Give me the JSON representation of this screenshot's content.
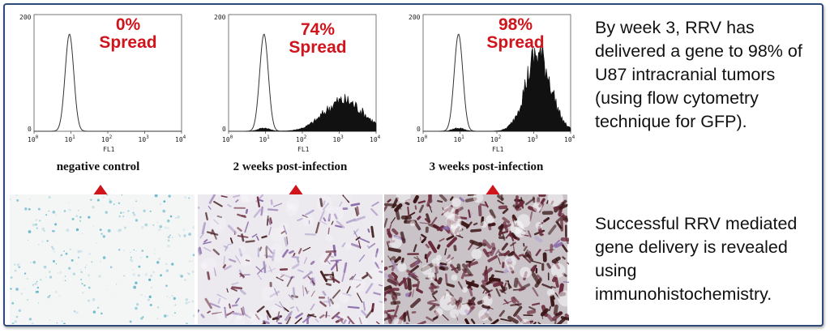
{
  "panels": [
    {
      "spread_pct": "0%",
      "spread_word": "Spread",
      "caption": "negative control",
      "y_max_label": "200",
      "y_min_label": "0",
      "x_axis_label": "FL1",
      "x_tick_labels": [
        "10",
        "10",
        "10",
        "10",
        "10"
      ],
      "x_tick_exponents": [
        "0",
        "1",
        "2",
        "3",
        "4"
      ],
      "filled_level": 0.0
    },
    {
      "spread_pct": "74%",
      "spread_word": "Spread",
      "caption": "2 weeks post-infection",
      "y_max_label": "200",
      "y_min_label": "0",
      "x_axis_label": "FL1",
      "x_tick_labels": [
        "10",
        "10",
        "10",
        "10",
        "10"
      ],
      "x_tick_exponents": [
        "0",
        "1",
        "2",
        "3",
        "4"
      ],
      "filled_level": 0.74
    },
    {
      "spread_pct": "98%",
      "spread_word": "Spread",
      "caption": "3 weeks post-infection",
      "y_max_label": "200",
      "y_min_label": "0",
      "x_axis_label": "FL1",
      "x_tick_labels": [
        "10",
        "10",
        "10",
        "10",
        "10"
      ],
      "x_tick_exponents": [
        "0",
        "1",
        "2",
        "3",
        "4"
      ],
      "filled_level": 0.98
    }
  ],
  "side_text": {
    "top": "By week 3, RRV has delivered a gene to 98% of U87 intracranial tumors (using flow cytometry technique for GFP).",
    "bottom": "Successful RRV mediated gene delivery is revealed using immunohistochemistry."
  },
  "colors": {
    "accent": "#d0141c",
    "frame": "#2d4a78",
    "stain_blue": "#4aa8c0",
    "stain_dark": "#3a1414"
  },
  "micrograph_stain_levels": [
    0.0,
    0.45,
    0.95
  ]
}
